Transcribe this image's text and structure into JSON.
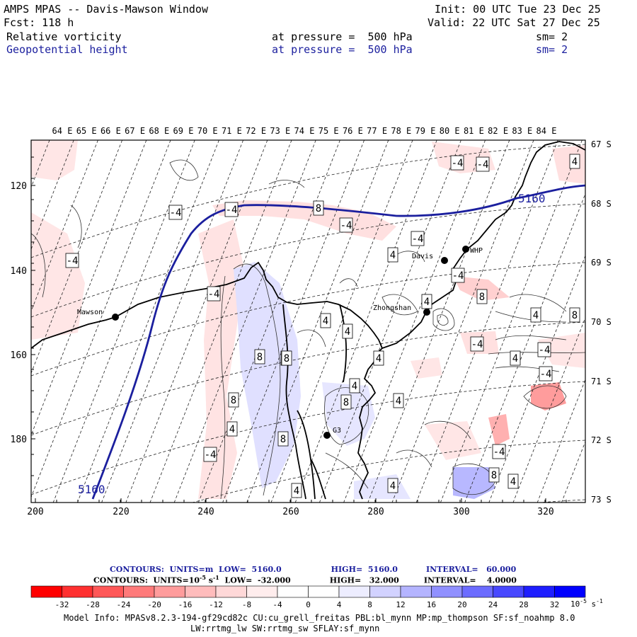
{
  "header": {
    "title": "AMPS MPAS -- Davis-Mawson Window",
    "fcst": "Fcst: 118 h",
    "init": "Init: 00 UTC Tue 23 Dec 25",
    "valid": "Valid: 22 UTC Sat 27 Dec 25",
    "fields": [
      {
        "name": "Relative vorticity",
        "level": "at pressure =  500 hPa",
        "sm": "sm= 2"
      },
      {
        "name": "Geopotential height",
        "level": "at pressure =  500 hPa",
        "sm": "sm= 2"
      }
    ]
  },
  "map": {
    "top_lon_labels": [
      "64 E",
      "65 E",
      "66 E",
      "67 E",
      "68 E",
      "69 E",
      "70 E",
      "71 E",
      "72 E",
      "73 E",
      "74 E",
      "75 E",
      "76 E",
      "77 E",
      "78 E",
      "79 E",
      "80 E",
      "81 E",
      "82 E",
      "83 E",
      "84 E"
    ],
    "right_lat_labels": [
      "67 S",
      "68 S",
      "69 S",
      "70 S",
      "71 S",
      "72 S",
      "73 S"
    ],
    "left_y_ticks": [
      "120",
      "140",
      "160",
      "180"
    ],
    "bottom_x_ticks": [
      "200",
      "220",
      "240",
      "260",
      "280",
      "300",
      "320"
    ],
    "stations": [
      {
        "name": "Mawson"
      },
      {
        "name": "Davis"
      },
      {
        "name": "WHP"
      },
      {
        "name": "Zhongshan"
      },
      {
        "name": "G3"
      }
    ],
    "height_contour_label": "5160",
    "contour_labels": [
      "-4",
      "-4",
      "-4",
      "-4",
      "-4",
      "-4",
      "-4",
      "-4",
      "-4",
      "-4",
      "-4",
      "-4",
      "-4",
      "-4",
      "4",
      "4",
      "4",
      "4",
      "4",
      "4",
      "4",
      "4",
      "4",
      "4",
      "4",
      "4",
      "4",
      "4",
      "4",
      "8",
      "8",
      "8",
      "8",
      "8",
      "8",
      "8",
      "8",
      "8"
    ],
    "colors": {
      "height_contour": "#1b1f9e",
      "coast": "#000000"
    }
  },
  "legend": {
    "height_contours": {
      "label": "CONTOURS:  UNITS=m  LOW=  5160.0",
      "high": "HIGH=  5160.0",
      "interval": "INTERVAL=   60.000"
    },
    "vort_contours": {
      "label": "CONTOURS:  UNITS=10",
      "units_exp": "-5",
      "units_suffix": " s",
      "units_exp2": "-1",
      "low": "  LOW=  -32.000",
      "high": "HIGH=   32.000",
      "interval": "INTERVAL=    4.0000"
    },
    "colorbar_ticks": [
      "-32",
      "-28",
      "-24",
      "-20",
      "-16",
      "-12",
      "-8",
      "-4",
      "0",
      "4",
      "8",
      "12",
      "16",
      "20",
      "24",
      "28",
      "32"
    ],
    "colorbar_colors": [
      "#ff0000",
      "#ff3030",
      "#ff5858",
      "#ff7a7a",
      "#ff9c9c",
      "#ffbcbc",
      "#ffd8d8",
      "#ffeded",
      "#ffffff",
      "#ffffff",
      "#ededff",
      "#d2d2ff",
      "#b4b4ff",
      "#9090ff",
      "#6c6cff",
      "#4848ff",
      "#1e1eff",
      "#0000ff"
    ],
    "colorbar_units": "10",
    "colorbar_units_exp": "-5",
    "colorbar_units_s": " s",
    "colorbar_units_exp2": "-1"
  },
  "model_info": {
    "line1": "Model Info: MPASv8.2.3-194-gf29cd82c CU:cu_grell_freitas PBL:bl_mynn MP:mp_thompson SF:sf_noahmp 8.0",
    "line2": "LW:rrtmg_lw SW:rrtmg_sw SFLAY:sf_mynn"
  }
}
